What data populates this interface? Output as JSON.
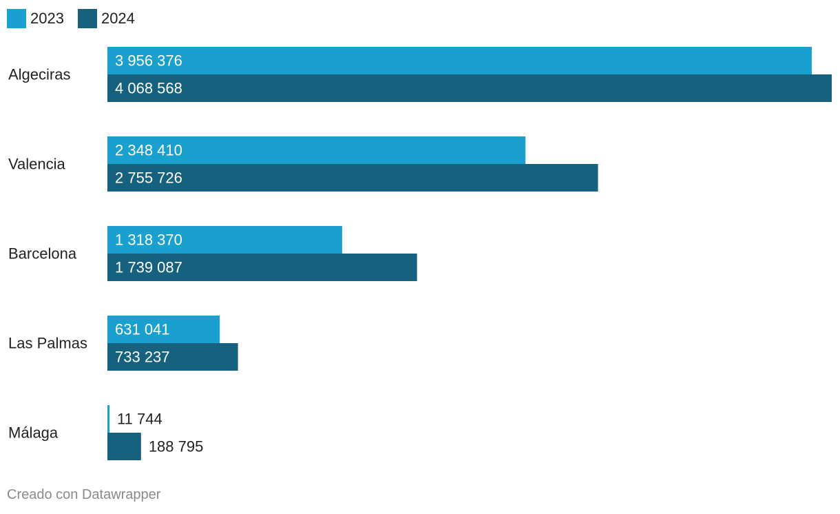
{
  "chart_data": {
    "type": "bar",
    "orientation": "horizontal",
    "categories": [
      "Algeciras",
      "Valencia",
      "Barcelona",
      "Las Palmas",
      "Málaga"
    ],
    "series": [
      {
        "name": "2023",
        "color": "#1aa0ce",
        "values": [
          3956376,
          2348410,
          1318370,
          631041,
          11744
        ],
        "labels": [
          "3 956 376",
          "2 348 410",
          "1 318 370",
          "631 041",
          "11 744"
        ]
      },
      {
        "name": "2024",
        "color": "#16627e",
        "values": [
          4068568,
          2755726,
          1739087,
          733237,
          188795
        ],
        "labels": [
          "4 068 568",
          "2 755 726",
          "1 739 087",
          "733 237",
          "188 795"
        ]
      }
    ],
    "xlim": [
      0,
      4068568
    ],
    "grid": false,
    "legend_position": "top-left"
  },
  "footer": {
    "credit": "Creado con Datawrapper"
  }
}
